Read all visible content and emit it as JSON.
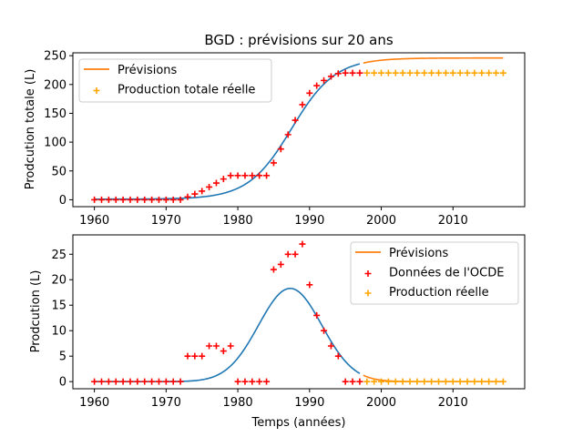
{
  "chart_data": [
    {
      "type": "line",
      "title": "BGD : prévisions sur 20 ans",
      "xlabel": "",
      "ylabel": "Prodcution totale (L)",
      "xlim": [
        1957,
        2020
      ],
      "ylim": [
        -12,
        255
      ],
      "xticks": [
        1960,
        1970,
        1980,
        1990,
        2000,
        2010
      ],
      "yticks": [
        0,
        50,
        100,
        150,
        200,
        250
      ],
      "legend_position": "top-left",
      "legend": [
        {
          "label": "Prévisions",
          "kind": "line",
          "color": "#ff7f0e"
        },
        {
          "label": "Production totale réelle",
          "kind": "plus",
          "color": "#ffa500"
        }
      ],
      "series": [
        {
          "name": "Prévisions",
          "kind": "logistic",
          "color": "#1f77b4",
          "x_range": [
            1960,
            1997
          ],
          "L": 245,
          "k": 0.33,
          "x0": 1987.5,
          "base": 1
        },
        {
          "name": "Prévisions",
          "kind": "logistic",
          "color": "#ff7f0e",
          "x_range": [
            1997.5,
            2017
          ],
          "L": 245,
          "k": 0.33,
          "x0": 1987.5,
          "base": 1
        },
        {
          "kind": "scatter",
          "color": "#ff0000",
          "x": [
            1960,
            1961,
            1962,
            1963,
            1964,
            1965,
            1966,
            1967,
            1968,
            1969,
            1970,
            1971,
            1972,
            1973,
            1974,
            1975,
            1976,
            1977,
            1978,
            1979,
            1980,
            1981,
            1982,
            1983,
            1984,
            1985,
            1986,
            1987,
            1988,
            1989,
            1990,
            1991,
            1992,
            1993,
            1994,
            1995,
            1996,
            1997
          ],
          "y": [
            0,
            0,
            0,
            0,
            0,
            0,
            0,
            0,
            0,
            0,
            0,
            0,
            0,
            5,
            10,
            15,
            22,
            29,
            36,
            42,
            42,
            42,
            42,
            42,
            42,
            64,
            88,
            113,
            138,
            165,
            185,
            198,
            207,
            214,
            219,
            220,
            220,
            220
          ]
        },
        {
          "name": "Production totale réelle",
          "kind": "scatter",
          "color": "#ffa500",
          "x": [
            1998,
            1999,
            2000,
            2001,
            2002,
            2003,
            2004,
            2005,
            2006,
            2007,
            2008,
            2009,
            2010,
            2011,
            2012,
            2013,
            2014,
            2015,
            2016,
            2017
          ],
          "y": [
            220,
            220,
            220,
            220,
            220,
            220,
            220,
            220,
            220,
            220,
            220,
            220,
            220,
            220,
            220,
            220,
            220,
            220,
            220,
            220
          ]
        }
      ]
    },
    {
      "type": "line",
      "title": "",
      "xlabel": "Temps (années)",
      "ylabel": "Prodcution (L)",
      "xlim": [
        1957,
        2020
      ],
      "ylim": [
        -1.4,
        28.8
      ],
      "xticks": [
        1960,
        1970,
        1980,
        1990,
        2000,
        2010
      ],
      "yticks": [
        0,
        5,
        10,
        15,
        20,
        25
      ],
      "legend_position": "top-right",
      "legend": [
        {
          "label": "Prévisions",
          "kind": "line",
          "color": "#ff7f0e"
        },
        {
          "label": "Données de l'OCDE",
          "kind": "plus",
          "color": "#ff0000"
        },
        {
          "label": "Production réelle",
          "kind": "plus",
          "color": "#ffa500"
        }
      ],
      "series": [
        {
          "name": "Prévisions",
          "kind": "gaussian",
          "color": "#1f77b4",
          "x_range": [
            1960,
            1997
          ],
          "peak": 18.3,
          "mu": 1987.3,
          "sigma": 4.4
        },
        {
          "name": "Prévisions",
          "kind": "gaussian",
          "color": "#ff7f0e",
          "x_range": [
            1997.5,
            2017
          ],
          "peak": 18.3,
          "mu": 1987.3,
          "sigma": 4.4
        },
        {
          "name": "Données de l'OCDE",
          "kind": "scatter",
          "color": "#ff0000",
          "x": [
            1960,
            1961,
            1962,
            1963,
            1964,
            1965,
            1966,
            1967,
            1968,
            1969,
            1970,
            1971,
            1972,
            1973,
            1974,
            1975,
            1976,
            1977,
            1978,
            1979,
            1980,
            1981,
            1982,
            1983,
            1984,
            1985,
            1986,
            1987,
            1988,
            1989,
            1990,
            1991,
            1992,
            1993,
            1994,
            1995,
            1996,
            1997
          ],
          "y": [
            0,
            0,
            0,
            0,
            0,
            0,
            0,
            0,
            0,
            0,
            0,
            0,
            0,
            5,
            5,
            5,
            7,
            7,
            6,
            7,
            0,
            0,
            0,
            0,
            0,
            22,
            23,
            25,
            25,
            27,
            19,
            13,
            10,
            7,
            5,
            0,
            0,
            0
          ]
        },
        {
          "name": "Production réelle",
          "kind": "scatter",
          "color": "#ffa500",
          "x": [
            1998,
            1999,
            2000,
            2001,
            2002,
            2003,
            2004,
            2005,
            2006,
            2007,
            2008,
            2009,
            2010,
            2011,
            2012,
            2013,
            2014,
            2015,
            2016,
            2017
          ],
          "y": [
            0,
            0,
            0,
            0,
            0,
            0,
            0,
            0,
            0,
            0,
            0,
            0,
            0,
            0,
            0,
            0,
            0,
            0,
            0,
            0
          ]
        }
      ]
    }
  ]
}
